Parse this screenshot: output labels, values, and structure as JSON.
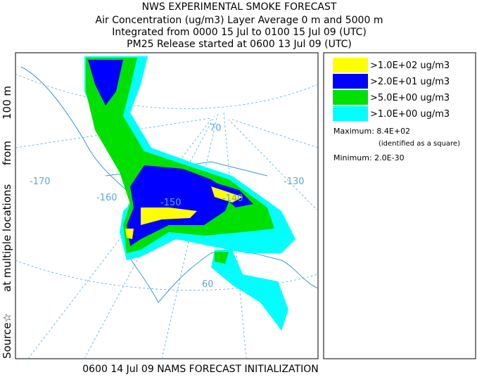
{
  "header": {
    "lines": [
      "NWS EXPERIMENTAL SMOKE FORECAST",
      "Air Concentration (ug/m3) Layer Average    0 m and  5000 m",
      "Integrated from 0000 15 Jul to 0100 15 Jul 09 (UTC)",
      "PM25 Release started at 0600 13 Jul 09 (UTC)"
    ]
  },
  "side_label": [
    "Source☆",
    "at multiple locations",
    "from",
    "100 m"
  ],
  "footer": "0600 14 Jul 09 NAMS FORECAST INITIALIZATION",
  "legend": {
    "items": [
      {
        "label": ">1.0E+02 ug/m3",
        "color": "#ffff00"
      },
      {
        "label": ">2.0E+01 ug/m3",
        "color": "#0000ff"
      },
      {
        "label": ">5.0E+00 ug/m3",
        "color": "#00e000"
      },
      {
        "label": ">1.0E+00 ug/m3",
        "color": "#00ffff"
      }
    ]
  },
  "stats": {
    "maximum": "Maximum: 8.4E+02",
    "max_note": "(identified as a square)",
    "minimum": "Minimum: 2.0E-30"
  },
  "map": {
    "labels": [
      "-170",
      "-160",
      "-150",
      "-140",
      "-130",
      "70",
      "60"
    ]
  }
}
